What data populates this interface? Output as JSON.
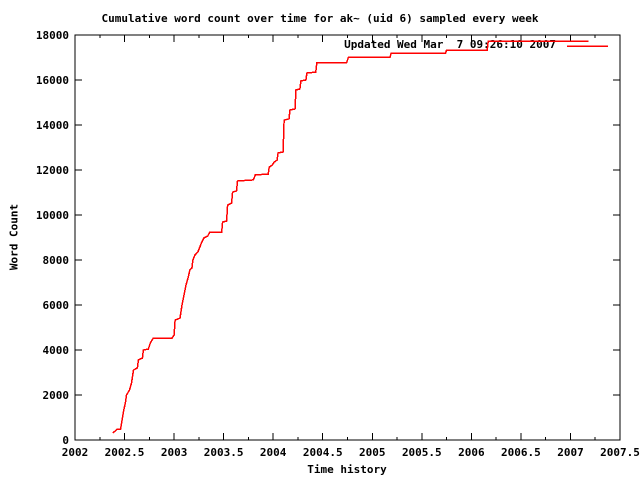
{
  "chart_data": {
    "type": "line",
    "title": "Cumulative word count over time for ak~ (uid 6) sampled every week",
    "xlabel": "Time history",
    "ylabel": "Word Count",
    "xlim": [
      2002,
      2007.5
    ],
    "ylim": [
      0,
      18000
    ],
    "x_minor_step": 0.25,
    "grid": false,
    "legend_position": "top-right-inside",
    "xticks": [
      {
        "v": 2002,
        "label": "2002"
      },
      {
        "v": 2002.5,
        "label": "2002.5"
      },
      {
        "v": 2003,
        "label": "2003"
      },
      {
        "v": 2003.5,
        "label": "2003.5"
      },
      {
        "v": 2004,
        "label": "2004"
      },
      {
        "v": 2004.5,
        "label": "2004.5"
      },
      {
        "v": 2005,
        "label": "2005"
      },
      {
        "v": 2005.5,
        "label": "2005.5"
      },
      {
        "v": 2006,
        "label": "2006"
      },
      {
        "v": 2006.5,
        "label": "2006.5"
      },
      {
        "v": 2007,
        "label": "2007"
      },
      {
        "v": 2007.5,
        "label": "2007.5"
      }
    ],
    "yticks": [
      {
        "v": 0,
        "label": "0"
      },
      {
        "v": 2000,
        "label": "2000"
      },
      {
        "v": 4000,
        "label": "4000"
      },
      {
        "v": 6000,
        "label": "6000"
      },
      {
        "v": 8000,
        "label": "8000"
      },
      {
        "v": 10000,
        "label": "10000"
      },
      {
        "v": 12000,
        "label": "12000"
      },
      {
        "v": 14000,
        "label": "14000"
      },
      {
        "v": 16000,
        "label": "16000"
      },
      {
        "v": 18000,
        "label": "18000"
      }
    ],
    "series": [
      {
        "name": "Updated Wed Mar  7 09:26:10 2007",
        "color": "#ff0000",
        "points": [
          [
            2002.38,
            310
          ],
          [
            2002.43,
            490
          ],
          [
            2002.46,
            490
          ],
          [
            2002.47,
            760
          ],
          [
            2002.49,
            1290
          ],
          [
            2002.51,
            1690
          ],
          [
            2002.52,
            2000
          ],
          [
            2002.55,
            2220
          ],
          [
            2002.57,
            2530
          ],
          [
            2002.59,
            3110
          ],
          [
            2002.63,
            3200
          ],
          [
            2002.64,
            3560
          ],
          [
            2002.68,
            3640
          ],
          [
            2002.69,
            4000
          ],
          [
            2002.74,
            4040
          ],
          [
            2002.76,
            4310
          ],
          [
            2002.79,
            4530
          ],
          [
            2002.98,
            4530
          ],
          [
            2003.0,
            4670
          ],
          [
            2003.01,
            5330
          ],
          [
            2003.06,
            5420
          ],
          [
            2003.08,
            6000
          ],
          [
            2003.1,
            6440
          ],
          [
            2003.12,
            6890
          ],
          [
            2003.14,
            7200
          ],
          [
            2003.16,
            7560
          ],
          [
            2003.18,
            7640
          ],
          [
            2003.19,
            8000
          ],
          [
            2003.21,
            8220
          ],
          [
            2003.24,
            8360
          ],
          [
            2003.26,
            8580
          ],
          [
            2003.28,
            8800
          ],
          [
            2003.3,
            8980
          ],
          [
            2003.34,
            9070
          ],
          [
            2003.36,
            9240
          ],
          [
            2003.48,
            9240
          ],
          [
            2003.49,
            9690
          ],
          [
            2003.53,
            9730
          ],
          [
            2003.54,
            10440
          ],
          [
            2003.58,
            10530
          ],
          [
            2003.59,
            11020
          ],
          [
            2003.63,
            11070
          ],
          [
            2003.64,
            11510
          ],
          [
            2003.8,
            11560
          ],
          [
            2003.82,
            11780
          ],
          [
            2003.95,
            11820
          ],
          [
            2003.96,
            12130
          ],
          [
            2003.99,
            12220
          ],
          [
            2004.01,
            12350
          ],
          [
            2004.04,
            12440
          ],
          [
            2004.05,
            12760
          ],
          [
            2004.1,
            12800
          ],
          [
            2004.11,
            14220
          ],
          [
            2004.16,
            14270
          ],
          [
            2004.17,
            14670
          ],
          [
            2004.22,
            14710
          ],
          [
            2004.23,
            15560
          ],
          [
            2004.27,
            15600
          ],
          [
            2004.28,
            15960
          ],
          [
            2004.33,
            16000
          ],
          [
            2004.34,
            16310
          ],
          [
            2004.43,
            16350
          ],
          [
            2004.44,
            16760
          ],
          [
            2004.74,
            16760
          ],
          [
            2004.76,
            17020
          ],
          [
            2005.18,
            17020
          ],
          [
            2005.19,
            17200
          ],
          [
            2005.74,
            17200
          ],
          [
            2005.75,
            17330
          ],
          [
            2006.16,
            17330
          ],
          [
            2006.17,
            17730
          ],
          [
            2007.18,
            17730
          ]
        ]
      }
    ],
    "colors": {
      "line": "#ff0000",
      "text": "#000000",
      "border": "#000000",
      "background": "#ffffff"
    }
  }
}
